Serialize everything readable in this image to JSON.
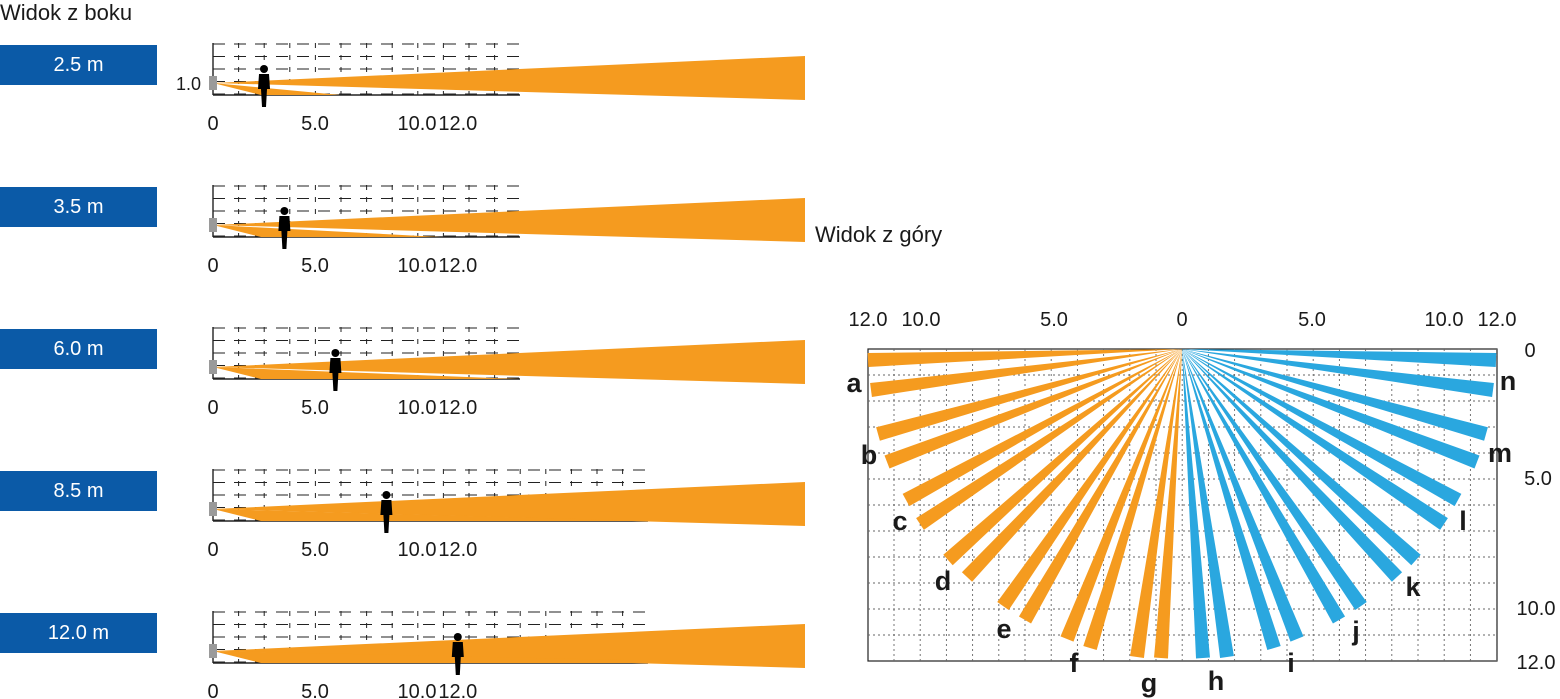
{
  "side_view": {
    "title": "Widok z boku",
    "sensor_height_label": "1.0",
    "x_ticks": [
      "0",
      "5.0",
      "10.0",
      "12.0"
    ],
    "panels": [
      {
        "range_label": "2.5 m",
        "person_distance": 2.5
      },
      {
        "range_label": "3.5 m",
        "person_distance": 3.5
      },
      {
        "range_label": "6.0 m",
        "person_distance": 6.0
      },
      {
        "range_label": "8.5 m",
        "person_distance": 8.5
      },
      {
        "range_label": "12.0 m",
        "person_distance": 12.0
      }
    ]
  },
  "top_view": {
    "title": "Widok z góry",
    "top_ticks": [
      "12.0",
      "10.0",
      "5.0",
      "0",
      "5.0",
      "10.0",
      "12.0"
    ],
    "right_ticks": [
      "0",
      "5.0",
      "10.0",
      "12.0"
    ],
    "zone_labels": [
      "a",
      "b",
      "c",
      "d",
      "e",
      "f",
      "g",
      "h",
      "i",
      "j",
      "k",
      "l",
      "m",
      "n"
    ],
    "left_zone_color": "#f59b1f",
    "right_zone_color": "#2aa7df"
  },
  "colors": {
    "beam": "#f59b1f",
    "badge": "#0b5aa7",
    "sensor": "#9a9a9a"
  }
}
